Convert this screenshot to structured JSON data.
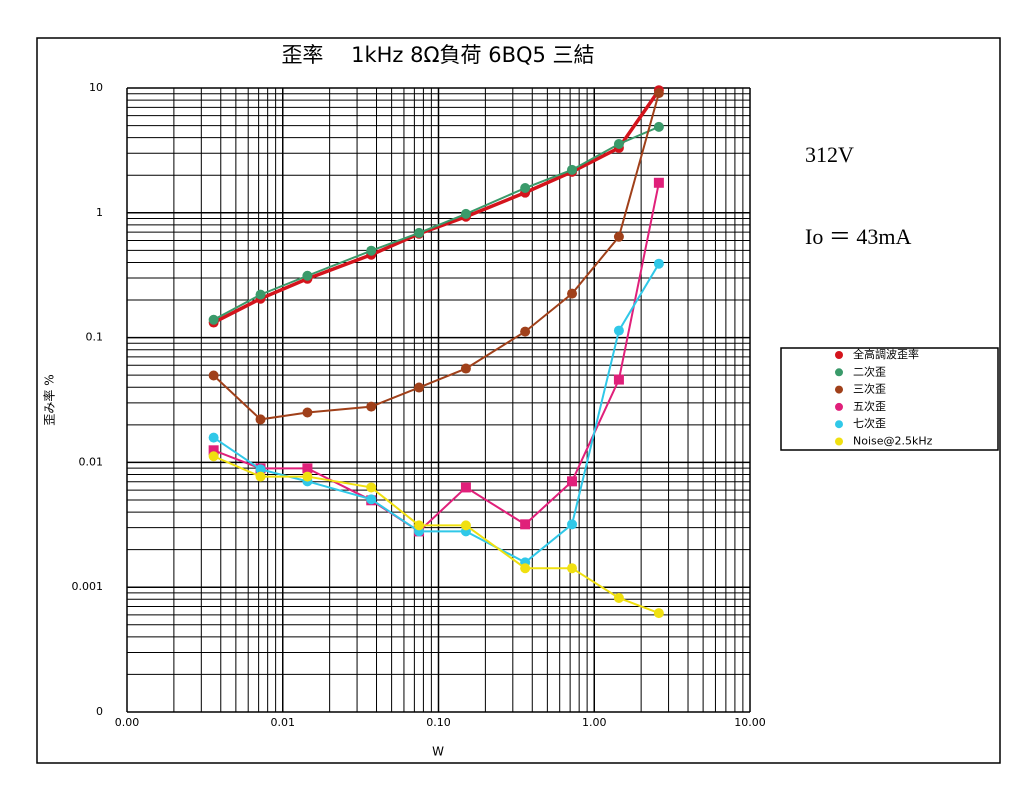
{
  "chart_data": {
    "type": "line",
    "title": "歪率　 1kHz 8Ω負荷  6BQ5 三結",
    "annotations": [
      "312V",
      "Io ＝ 43mA"
    ],
    "xlabel": "W",
    "ylabel": "歪み率 %",
    "xscale": "log",
    "yscale": "log",
    "grid": true,
    "minor_grid": true,
    "legend": "right",
    "xlim": [
      0.001,
      10
    ],
    "xticks": [
      {
        "value": 0.001,
        "label": "0.00"
      },
      {
        "value": 0.01,
        "label": "0.01"
      },
      {
        "value": 0.1,
        "label": "0.10"
      },
      {
        "value": 1,
        "label": "1.00"
      },
      {
        "value": 10,
        "label": "10.00"
      }
    ],
    "ylim": [
      0.0001,
      10
    ],
    "yticks": [
      10,
      1,
      0.1,
      0.01,
      0.001,
      {
        "value": 0.0001,
        "label": "0"
      }
    ],
    "x": [
      0.0036,
      0.0072,
      0.0144,
      0.037,
      0.075,
      0.15,
      0.36,
      0.72,
      1.44,
      2.6
    ],
    "series": [
      {
        "name": "全高調波歪率",
        "color": "#d4141c",
        "marker": "circle",
        "width": 3.5,
        "values": [
          0.132,
          0.205,
          0.296,
          0.461,
          0.679,
          0.93,
          1.45,
          2.13,
          3.31,
          9.6
        ]
      },
      {
        "name": "二次歪",
        "color": "#3a9a6a",
        "marker": "circle",
        "width": 2,
        "values": [
          0.139,
          0.221,
          0.313,
          0.497,
          0.69,
          0.98,
          1.58,
          2.21,
          3.56,
          4.88
        ]
      },
      {
        "name": "三次歪",
        "color": "#a0401a",
        "marker": "circle",
        "width": 2,
        "values": [
          0.0497,
          0.0221,
          0.0251,
          0.028,
          0.0398,
          0.0565,
          0.1117,
          0.225,
          0.643,
          9.1
        ]
      },
      {
        "name": "五次歪",
        "color": "#e0207a",
        "marker": "square",
        "width": 2,
        "values": [
          0.0125,
          0.00895,
          0.00895,
          0.00497,
          0.0028,
          0.0063,
          0.00319,
          0.00705,
          0.0461,
          1.74
        ]
      },
      {
        "name": "七次歪",
        "color": "#30c8e8",
        "marker": "circle",
        "width": 2,
        "values": [
          0.0158,
          0.0088,
          0.00705,
          0.00506,
          0.0028,
          0.0028,
          0.00158,
          0.00319,
          0.1138,
          0.391
        ]
      },
      {
        "name": "Noise@2.5kHz",
        "color": "#f0e010",
        "marker": "circle",
        "width": 2,
        "values": [
          0.0112,
          0.0077,
          0.0077,
          0.0063,
          0.00313,
          0.00313,
          0.00142,
          0.00142,
          0.00082,
          0.00062
        ]
      }
    ]
  }
}
